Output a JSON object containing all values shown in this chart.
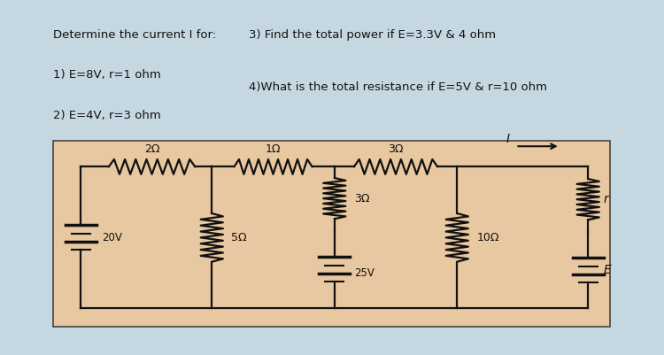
{
  "bg_outer": "#c5d8e2",
  "bg_white": "#ffffff",
  "bg_circuit": "#e8c8a0",
  "line_color": "#111111",
  "text_color": "#111111",
  "title1": "Determine the current I for:",
  "title2": "1) E=8V, r=1 ohm",
  "title3": "2) E=4V, r=3 ohm",
  "title4": "3) Find the total power if E=3.3V & 4 ohm",
  "title5": "4)What is the total resistance if E=5V & r=10 ohm",
  "font_size": 9.5
}
